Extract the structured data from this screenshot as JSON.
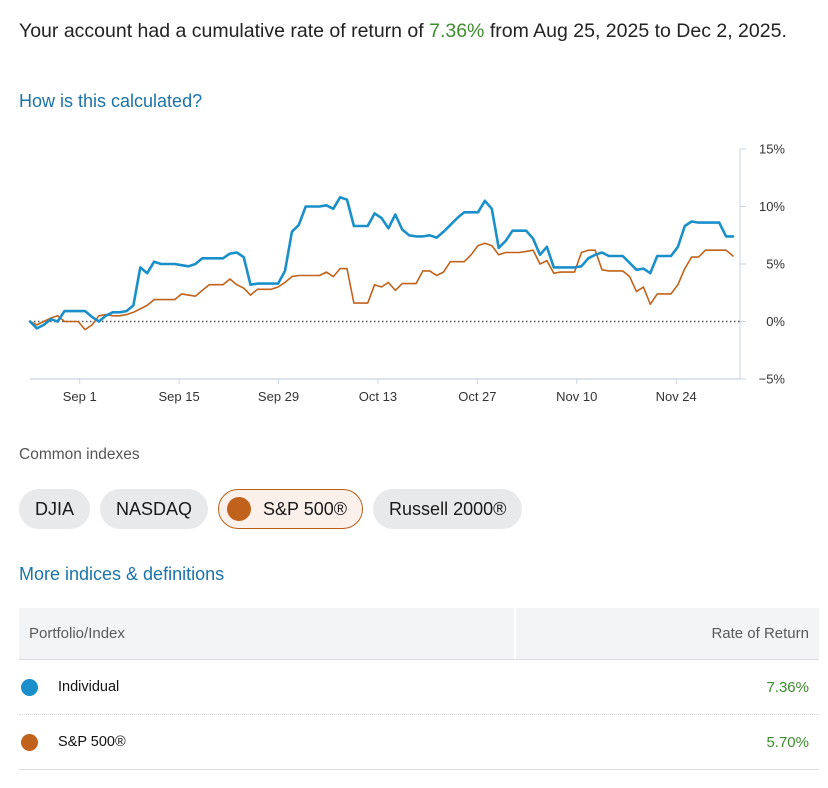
{
  "summary": {
    "prefix": "Your account had a cumulative rate of return of ",
    "rate": "7.36%",
    "suffix": " from Aug 25, 2025 to Dec 2, 2025."
  },
  "calc_link": "How is this calculated?",
  "chart_data": {
    "type": "line",
    "x_start": "Aug 25, 2025",
    "x_end": "Dec 2, 2025",
    "x_ticks": [
      "Sep 1",
      "Sep 15",
      "Sep 29",
      "Oct 13",
      "Oct 27",
      "Nov 10",
      "Nov 24"
    ],
    "y_ticks": [
      "15%",
      "10%",
      "5%",
      "0%",
      "−5%"
    ],
    "y_tick_values": [
      15,
      10,
      5,
      0,
      -5
    ],
    "ylim": [
      -5,
      15
    ],
    "baseline": 0,
    "series": [
      {
        "name": "Individual",
        "color": "#1a8fc9",
        "values": [
          0,
          -0.6,
          -0.3,
          0.2,
          0.0,
          0.9,
          0.9,
          0.9,
          0.9,
          0.4,
          0.0,
          0.5,
          0.8,
          0.8,
          0.9,
          1.4,
          4.7,
          4.2,
          5.2,
          5.0,
          5.0,
          5.0,
          4.9,
          4.8,
          5.0,
          5.5,
          5.5,
          5.5,
          5.5,
          5.9,
          6.0,
          5.6,
          3.2,
          3.3,
          3.3,
          3.3,
          3.3,
          4.4,
          7.8,
          8.4,
          10.0,
          10.0,
          10.0,
          10.1,
          9.8,
          10.8,
          10.6,
          8.3,
          8.3,
          8.3,
          9.4,
          9.0,
          8.1,
          9.3,
          8.0,
          7.5,
          7.4,
          7.4,
          7.5,
          7.3,
          7.8,
          8.4,
          9.0,
          9.5,
          9.5,
          9.5,
          10.5,
          9.8,
          6.4,
          7.0,
          7.9,
          7.9,
          7.9,
          7.2,
          5.8,
          6.5,
          4.7,
          4.7,
          4.7,
          4.7,
          4.8,
          5.5,
          5.8,
          6.0,
          5.7,
          5.7,
          5.7,
          5.1,
          4.5,
          4.6,
          4.2,
          5.7,
          5.7,
          5.7,
          6.5,
          8.3,
          8.7,
          8.6,
          8.6,
          8.6,
          8.6,
          7.4,
          7.4
        ]
      },
      {
        "name": "S&P 500®",
        "color": "#c0621c",
        "values": [
          0,
          -0.3,
          0.0,
          0.3,
          0.5,
          0.0,
          0.0,
          0.0,
          -0.7,
          -0.3,
          0.5,
          0.6,
          0.5,
          0.5,
          0.6,
          0.8,
          1.1,
          1.4,
          1.9,
          1.9,
          1.9,
          1.9,
          2.4,
          2.3,
          2.2,
          2.7,
          3.2,
          3.2,
          3.2,
          3.7,
          3.2,
          2.9,
          2.3,
          2.8,
          2.8,
          2.8,
          3.0,
          3.4,
          3.9,
          4.0,
          4.0,
          4.0,
          4.0,
          4.3,
          3.9,
          4.6,
          4.6,
          1.6,
          1.6,
          1.6,
          3.2,
          3.0,
          3.4,
          2.7,
          3.3,
          3.3,
          3.3,
          4.4,
          4.4,
          4.0,
          4.3,
          5.2,
          5.2,
          5.2,
          5.8,
          6.6,
          6.8,
          6.6,
          5.8,
          6.0,
          6.0,
          6.0,
          6.1,
          6.2,
          5.0,
          5.3,
          4.2,
          4.3,
          4.3,
          4.3,
          6.0,
          6.2,
          6.2,
          4.5,
          4.4,
          4.4,
          4.4,
          3.9,
          2.6,
          3.0,
          1.5,
          2.4,
          2.4,
          2.4,
          3.2,
          4.6,
          5.6,
          5.6,
          6.2,
          6.2,
          6.2,
          6.2,
          5.7
        ]
      }
    ]
  },
  "indexes": {
    "label": "Common indexes",
    "chips": [
      {
        "label": "DJIA",
        "active": false
      },
      {
        "label": "NASDAQ",
        "active": false
      },
      {
        "label": "S&P 500®",
        "active": true,
        "color": "#c0621c"
      },
      {
        "label": "Russell 2000®",
        "active": false
      }
    ]
  },
  "more_link": "More indices & definitions",
  "table": {
    "headers": [
      "Portfolio/Index",
      "Rate of Return"
    ],
    "rows": [
      {
        "name": "Individual",
        "value": "7.36%",
        "color": "#1a8fc9"
      },
      {
        "name": "S&P 500®",
        "value": "5.70%",
        "color": "#c0621c"
      }
    ]
  }
}
